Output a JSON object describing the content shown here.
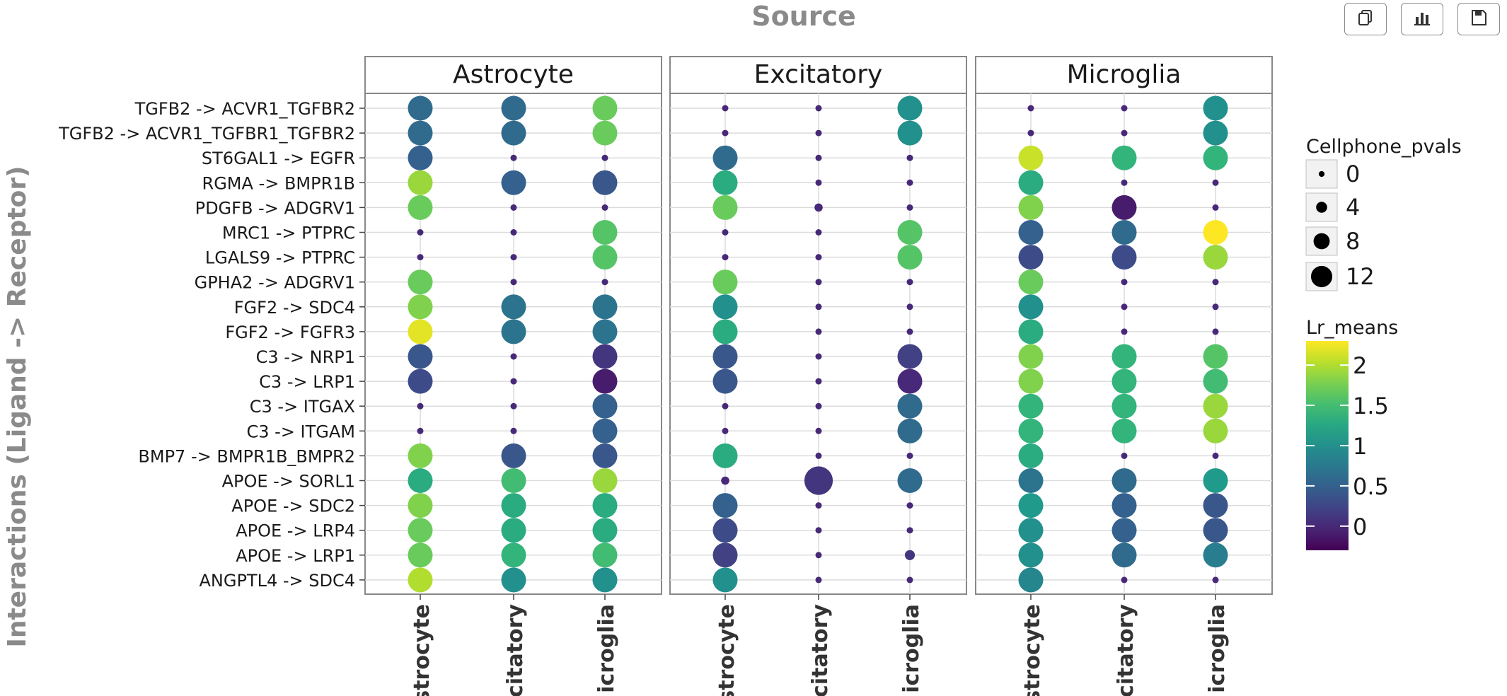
{
  "toolbar": {
    "buttons": [
      {
        "name": "copy-button",
        "icon": "copy-icon"
      },
      {
        "name": "chart-button",
        "icon": "bar-chart-icon"
      },
      {
        "name": "save-button",
        "icon": "floppy-disk-icon"
      }
    ]
  },
  "chart_data": {
    "type": "scatter",
    "subtype": "dot-plot",
    "title": "Source",
    "ylabel": "Interactions (Ligand -> Receptor)",
    "facets": [
      "Astrocyte",
      "Excitatory",
      "Microglia"
    ],
    "x_categories": [
      "Astrocyte",
      "Excitatory",
      "Microglia"
    ],
    "x_tick_labels_visible": [
      "strocyte",
      "citatory",
      "icroglia"
    ],
    "y_categories": [
      "TGFB2 -> ACVR1_TGFBR2",
      "TGFB2 -> ACVR1_TGFBR1_TGFBR2",
      "ST6GAL1 -> EGFR",
      "RGMA -> BMPR1B",
      "PDGFB -> ADGRV1",
      "MRC1 -> PTPRC",
      "LGALS9 -> PTPRC",
      "GPHA2 -> ADGRV1",
      "FGF2 -> SDC4",
      "FGF2 -> FGFR3",
      "C3 -> NRP1",
      "C3 -> LRP1",
      "C3 -> ITGAX",
      "C3 -> ITGAM",
      "BMP7 -> BMPR1B_BMPR2",
      "APOE -> SORL1",
      "APOE -> SDC2",
      "APOE -> LRP4",
      "APOE -> LRP1",
      "ANGPTL4 -> SDC4"
    ],
    "size_legend": {
      "title": "Cellphone_pvals",
      "values": [
        0,
        4,
        8,
        12
      ]
    },
    "color_legend": {
      "title": "Lr_means",
      "ticks": [
        2,
        1.5,
        1,
        0.5,
        0
      ],
      "range": [
        -0.3,
        2.3
      ],
      "colormap": "viridis"
    },
    "grid": true,
    "points": {
      "Astrocyte": {
        "Astrocyte": [
          [
            0.6,
            10
          ],
          [
            0.6,
            10
          ],
          [
            0.5,
            10
          ],
          [
            1.9,
            10
          ],
          [
            1.7,
            10
          ],
          [
            0,
            0
          ],
          [
            0,
            0
          ],
          [
            1.7,
            10
          ],
          [
            1.8,
            10
          ],
          [
            2.2,
            10
          ],
          [
            0.4,
            10
          ],
          [
            0.3,
            10
          ],
          [
            0,
            0
          ],
          [
            0,
            0
          ],
          [
            1.8,
            10
          ],
          [
            1.3,
            10
          ],
          [
            1.8,
            10
          ],
          [
            1.7,
            10
          ],
          [
            1.7,
            10
          ],
          [
            2.0,
            10
          ]
        ],
        "Excitatory": [
          [
            0.6,
            10
          ],
          [
            0.6,
            10
          ],
          [
            0,
            0
          ],
          [
            0.5,
            10
          ],
          [
            0,
            0
          ],
          [
            0,
            0
          ],
          [
            0,
            0
          ],
          [
            0,
            0
          ],
          [
            0.7,
            10
          ],
          [
            0.7,
            10
          ],
          [
            0,
            0
          ],
          [
            0,
            0
          ],
          [
            0,
            0
          ],
          [
            0,
            0
          ],
          [
            0.4,
            10
          ],
          [
            1.5,
            10
          ],
          [
            1.3,
            10
          ],
          [
            1.3,
            10
          ],
          [
            1.4,
            10
          ],
          [
            1.0,
            10
          ]
        ],
        "Microglia": [
          [
            1.7,
            10
          ],
          [
            1.7,
            10
          ],
          [
            0,
            0
          ],
          [
            0.4,
            10
          ],
          [
            0,
            0
          ],
          [
            1.6,
            10
          ],
          [
            1.6,
            10
          ],
          [
            0,
            0
          ],
          [
            0.7,
            10
          ],
          [
            0.7,
            10
          ],
          [
            0.1,
            10
          ],
          [
            -0.1,
            10
          ],
          [
            0.5,
            10
          ],
          [
            0.5,
            10
          ],
          [
            0.4,
            10
          ],
          [
            1.9,
            10
          ],
          [
            1.3,
            10
          ],
          [
            1.3,
            10
          ],
          [
            1.5,
            10
          ],
          [
            1.0,
            10
          ]
        ]
      },
      "Excitatory": {
        "Astrocyte": [
          [
            0,
            0
          ],
          [
            0,
            0
          ],
          [
            0.6,
            10
          ],
          [
            1.3,
            10
          ],
          [
            1.7,
            10
          ],
          [
            0,
            0
          ],
          [
            0,
            0
          ],
          [
            1.7,
            10
          ],
          [
            1.0,
            10
          ],
          [
            1.3,
            10
          ],
          [
            0.4,
            10
          ],
          [
            0.4,
            10
          ],
          [
            0,
            0
          ],
          [
            0,
            0
          ],
          [
            1.3,
            10
          ],
          [
            0,
            1
          ],
          [
            0.5,
            10
          ],
          [
            0.3,
            10
          ],
          [
            0.2,
            10
          ],
          [
            1.0,
            10
          ]
        ],
        "Excitatory": [
          [
            0,
            0
          ],
          [
            0,
            0
          ],
          [
            0,
            0
          ],
          [
            0,
            0
          ],
          [
            0,
            1
          ],
          [
            0,
            0
          ],
          [
            0,
            0
          ],
          [
            0,
            0
          ],
          [
            0,
            0
          ],
          [
            0,
            0
          ],
          [
            0,
            0
          ],
          [
            0,
            0
          ],
          [
            0,
            0
          ],
          [
            0,
            0
          ],
          [
            0,
            0
          ],
          [
            0.1,
            12
          ],
          [
            0,
            0
          ],
          [
            0,
            0
          ],
          [
            0,
            0
          ],
          [
            0,
            0
          ]
        ],
        "Microglia": [
          [
            1.0,
            10
          ],
          [
            1.0,
            10
          ],
          [
            0,
            0
          ],
          [
            0,
            0
          ],
          [
            0,
            0
          ],
          [
            1.6,
            10
          ],
          [
            1.6,
            10
          ],
          [
            0,
            0
          ],
          [
            0,
            0
          ],
          [
            0,
            0
          ],
          [
            0.2,
            10
          ],
          [
            0,
            10
          ],
          [
            0.6,
            10
          ],
          [
            0.6,
            10
          ],
          [
            0,
            0
          ],
          [
            0.6,
            10
          ],
          [
            0,
            0
          ],
          [
            0,
            0
          ],
          [
            0.1,
            2
          ],
          [
            0,
            0
          ]
        ]
      },
      "Microglia": {
        "Astrocyte": [
          [
            0,
            0
          ],
          [
            0,
            0
          ],
          [
            2.1,
            10
          ],
          [
            1.3,
            10
          ],
          [
            1.8,
            10
          ],
          [
            0.5,
            10
          ],
          [
            0.3,
            10
          ],
          [
            1.7,
            10
          ],
          [
            1.0,
            10
          ],
          [
            1.3,
            10
          ],
          [
            1.8,
            10
          ],
          [
            1.8,
            10
          ],
          [
            1.4,
            10
          ],
          [
            1.4,
            10
          ],
          [
            1.3,
            10
          ],
          [
            0.7,
            10
          ],
          [
            1.1,
            10
          ],
          [
            1.0,
            10
          ],
          [
            1.0,
            10
          ],
          [
            0.9,
            10
          ]
        ],
        "Excitatory": [
          [
            0,
            0
          ],
          [
            0,
            0
          ],
          [
            1.4,
            10
          ],
          [
            0,
            0
          ],
          [
            -0.1,
            10
          ],
          [
            0.6,
            10
          ],
          [
            0.3,
            10
          ],
          [
            0,
            0
          ],
          [
            0,
            0
          ],
          [
            0,
            0
          ],
          [
            1.4,
            10
          ],
          [
            1.4,
            10
          ],
          [
            1.4,
            10
          ],
          [
            1.4,
            10
          ],
          [
            0,
            0
          ],
          [
            0.6,
            10
          ],
          [
            0.5,
            10
          ],
          [
            0.5,
            10
          ],
          [
            0.6,
            10
          ],
          [
            0,
            0
          ]
        ],
        "Microglia": [
          [
            1.0,
            10
          ],
          [
            1.0,
            10
          ],
          [
            1.4,
            10
          ],
          [
            0,
            0
          ],
          [
            0,
            0
          ],
          [
            2.3,
            10
          ],
          [
            1.9,
            10
          ],
          [
            0,
            0
          ],
          [
            0,
            0
          ],
          [
            0,
            0
          ],
          [
            1.6,
            10
          ],
          [
            1.5,
            10
          ],
          [
            1.9,
            10
          ],
          [
            1.9,
            10
          ],
          [
            0,
            0
          ],
          [
            1.1,
            10
          ],
          [
            0.4,
            10
          ],
          [
            0.4,
            10
          ],
          [
            0.8,
            10
          ],
          [
            0,
            0
          ]
        ]
      }
    }
  }
}
